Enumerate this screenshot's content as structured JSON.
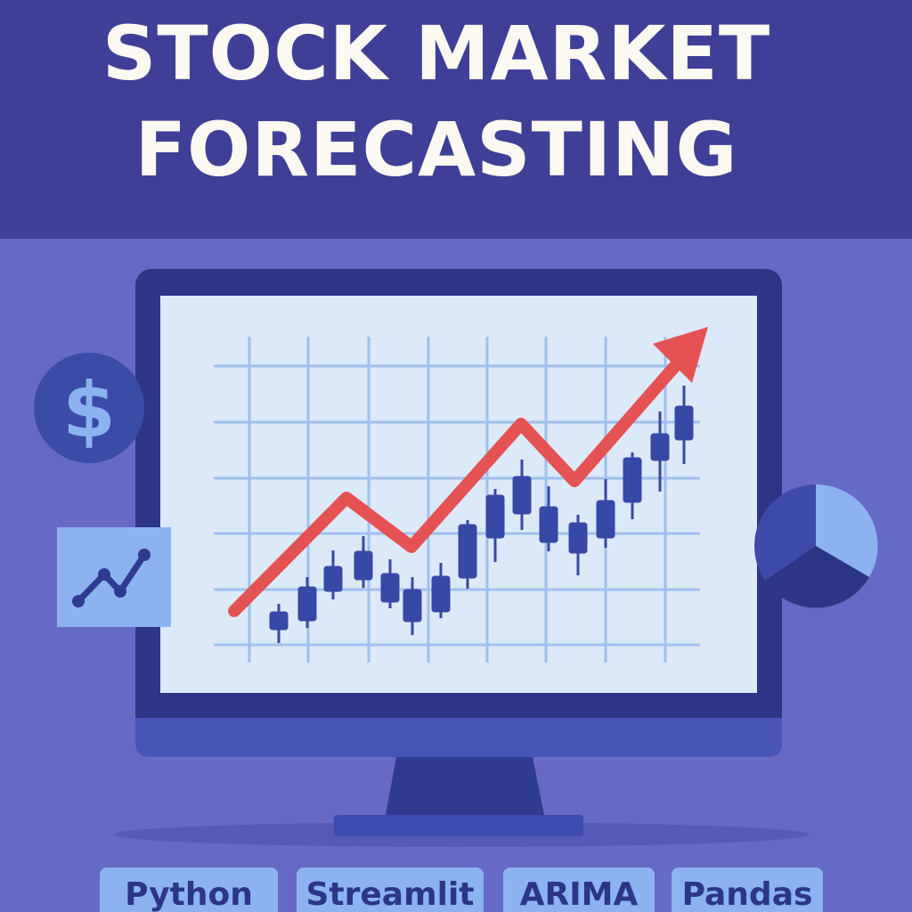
{
  "header": {
    "title_line_1": "STOCK MARKET",
    "title_line_2": "FORECASTING"
  },
  "tags": [
    "Python",
    "Streamlit",
    "ARIMA",
    "Pandas"
  ],
  "icons": {
    "left_top": "dollar-icon",
    "left_bottom": "line-chart-icon",
    "right": "pie-chart-icon",
    "trend": "trend-up-arrow-icon"
  },
  "colors": {
    "background": "#6669c5",
    "header_background": "#3f3f97",
    "title_text": "#fbf9f1",
    "monitor_frame": "#2c3586",
    "screen": "#dce9f8",
    "grid": "#9fc0ee",
    "candles": "#3848a6",
    "trend_arrow": "#e55253",
    "accent_light": "#8db2f0"
  }
}
